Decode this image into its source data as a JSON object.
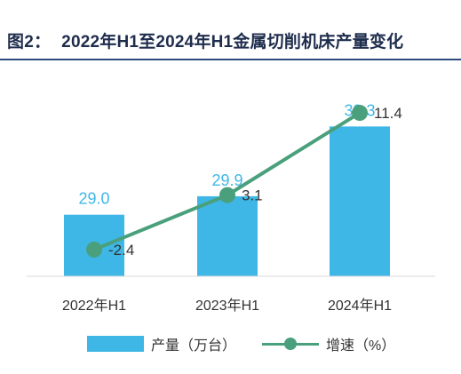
{
  "figure": {
    "label": "图2：",
    "title": "2022年H1至2024年H1金属切削机床产量变化"
  },
  "chart_data": {
    "type": "bar",
    "categories": [
      "2022年H1",
      "2023年H1",
      "2024年H1"
    ],
    "series": [
      {
        "name": "产量（万台）",
        "type": "bar",
        "values": [
          29.0,
          29.9,
          33.3
        ],
        "value_labels": [
          "29.0",
          "29.9",
          "33.3"
        ],
        "color": "#3fb7e6"
      },
      {
        "name": "增速（%）",
        "type": "line",
        "values": [
          -2.4,
          3.1,
          11.4
        ],
        "value_labels": [
          "-2.4",
          "3.1",
          "11.4"
        ],
        "color": "#4aa07c"
      }
    ],
    "grid": false,
    "legend_position": "bottom"
  }
}
